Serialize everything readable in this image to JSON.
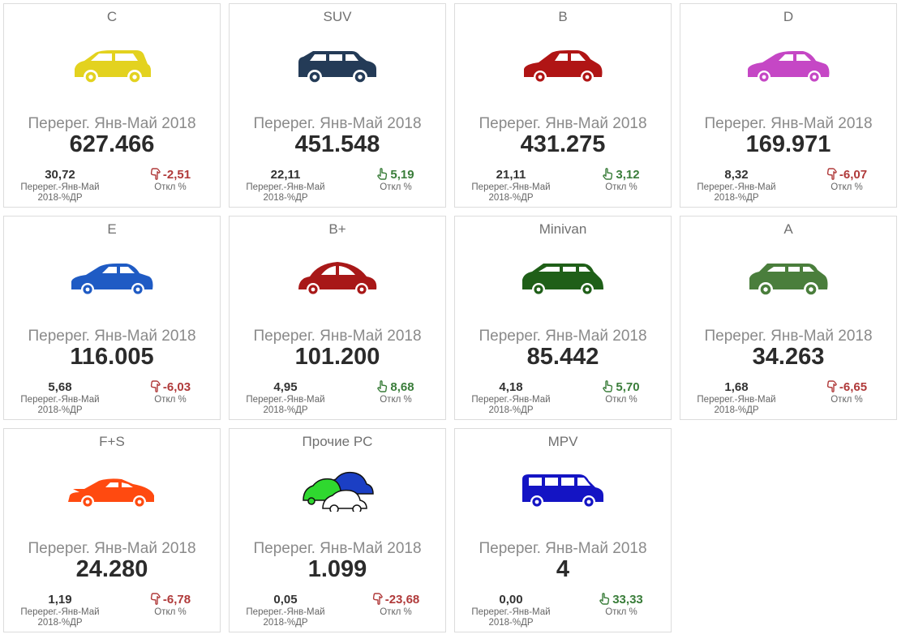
{
  "period_label": "Перерег. Янв-Май 2018",
  "share_label": "Перерег.-Янв-Май 2018-%ДР",
  "dev_label": "Откл %",
  "cards": [
    {
      "category": "C",
      "value": "627.466",
      "share": "30,72",
      "deviation": "-2,51",
      "trend": "down",
      "car_icon": "hatchback-icon",
      "car_color": "#e3d21f"
    },
    {
      "category": "SUV",
      "value": "451.548",
      "share": "22,11",
      "deviation": "5,19",
      "trend": "up",
      "car_icon": "suv-icon",
      "car_color": "#243b57"
    },
    {
      "category": "B",
      "value": "431.275",
      "share": "21,11",
      "deviation": "3,12",
      "trend": "up",
      "car_icon": "small-car-icon",
      "car_color": "#b01515"
    },
    {
      "category": "D",
      "value": "169.971",
      "share": "8,32",
      "deviation": "-6,07",
      "trend": "down",
      "car_icon": "sedan-icon",
      "car_color": "#c547c5"
    },
    {
      "category": "E",
      "value": "116.005",
      "share": "5,68",
      "deviation": "-6,03",
      "trend": "down",
      "car_icon": "sedan-icon",
      "car_color": "#1f5bc4"
    },
    {
      "category": "B+",
      "value": "101.200",
      "share": "4,95",
      "deviation": "8,68",
      "trend": "up",
      "car_icon": "beetle-icon",
      "car_color": "#a81818"
    },
    {
      "category": "Minivan",
      "value": "85.442",
      "share": "4,18",
      "deviation": "5,70",
      "trend": "up",
      "car_icon": "minivan-icon",
      "car_color": "#1f5f18"
    },
    {
      "category": "A",
      "value": "34.263",
      "share": "1,68",
      "deviation": "-6,65",
      "trend": "down",
      "car_icon": "compact-car-icon",
      "car_color": "#4a7e3c"
    },
    {
      "category": "F+S",
      "value": "24.280",
      "share": "1,19",
      "deviation": "-6,78",
      "trend": "down",
      "car_icon": "sports-car-icon",
      "car_color": "#ff4a10"
    },
    {
      "category": "Прочие PC",
      "value": "1.099",
      "share": "0,05",
      "deviation": "-23,68",
      "trend": "down",
      "car_icon": "multi-car-icon",
      "car_color": "#1b3fc4"
    },
    {
      "category": "MPV",
      "value": "4",
      "share": "0,00",
      "deviation": "33,33",
      "trend": "up",
      "car_icon": "van-icon",
      "car_color": "#1414c4"
    }
  ]
}
